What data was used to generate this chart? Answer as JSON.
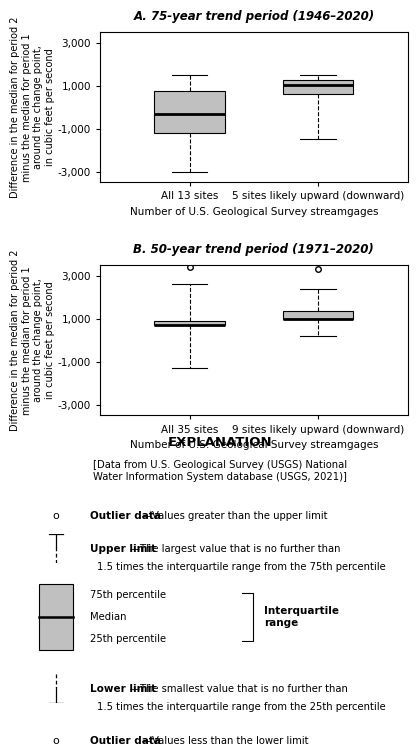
{
  "panel_a": {
    "title": "A. 75-year trend period (1946–2020)",
    "xlabel": "Number of U.S. Geological Survey streamgages",
    "ylabel": "Difference in the median for period 2\nminus the median for period 1\naround the change point,\nin cubic feet per second",
    "xtick_labels": [
      "All 13 sites",
      "5 sites likely upward (downward)"
    ],
    "ylim": [
      -3500,
      3500
    ],
    "yticks": [
      -3000,
      -1000,
      1000,
      3000
    ],
    "boxes": [
      {
        "q1": -1200,
        "median": -300,
        "q3": 750,
        "whislo": -3000,
        "whishi": 1500,
        "fliers": []
      },
      {
        "q1": 600,
        "median": 1050,
        "q3": 1250,
        "whislo": -1500,
        "whishi": 1500,
        "fliers": []
      }
    ]
  },
  "panel_b": {
    "title": "B. 50-year trend period (1971–2020)",
    "xlabel": "Number of U.S. Geological Survey streamgages",
    "ylabel": "Difference in the median for period 2\nminus the median for period 1\naround the change point,\nin cubic feet per second",
    "xtick_labels": [
      "All 35 sites",
      "9 sites likely upward (downward)"
    ],
    "ylim": [
      -3500,
      3500
    ],
    "yticks": [
      -3000,
      -1000,
      1000,
      3000
    ],
    "boxes": [
      {
        "q1": 700,
        "median": 700,
        "q3": 900,
        "whislo": -1300,
        "whishi": 2600,
        "fliers": [
          3400
        ]
      },
      {
        "q1": 1000,
        "median": 1000,
        "q3": 1350,
        "whislo": 200,
        "whishi": 2400,
        "fliers": [
          3300
        ]
      }
    ]
  },
  "box_color": "#c0c0c0",
  "box_edgecolor": "#000000",
  "explanation": {
    "title": "EXPLANATION",
    "data_note": "[Data from U.S. Geological Survey (USGS) National\nWater Information System database (USGS, 2021)]"
  }
}
